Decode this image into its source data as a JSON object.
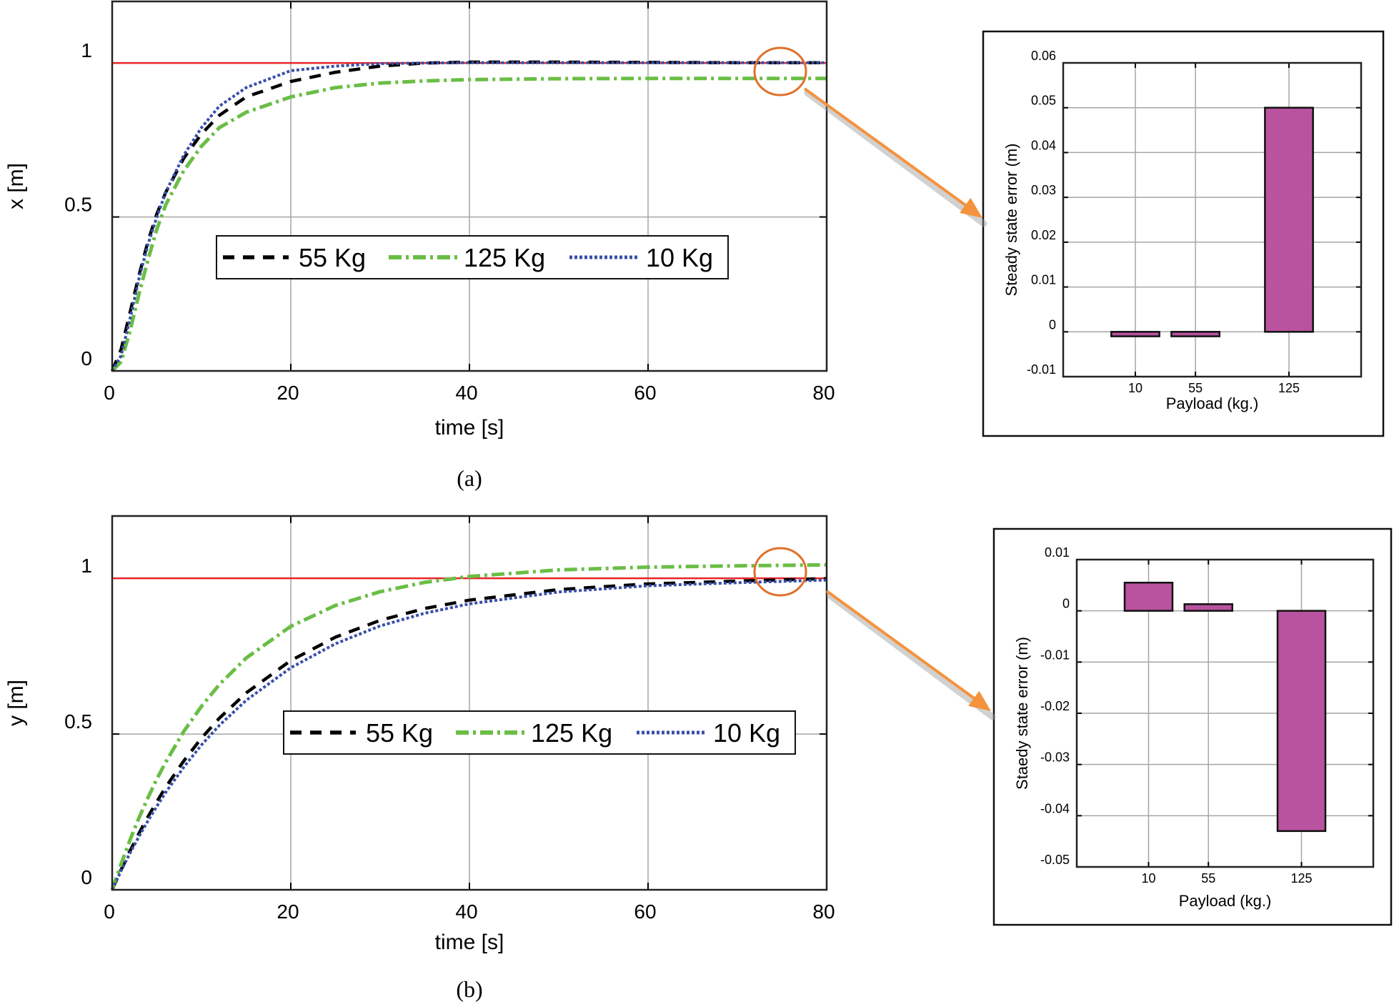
{
  "captions": {
    "a": "(a)",
    "b": "(b)"
  },
  "colors": {
    "reference": "#e8262a",
    "callout": "#f5923e",
    "bar": "#b9529f",
    "grid": "#a6a6a6"
  },
  "chart_data": [
    {
      "id": "x_response",
      "type": "line",
      "xlabel": "time [s]",
      "ylabel": "x [m]",
      "xlim": [
        0,
        80
      ],
      "ylim": [
        0,
        1.2
      ],
      "xticks": [
        0,
        20,
        40,
        60,
        80
      ],
      "yticks": [
        0,
        0.5,
        1
      ],
      "grid": true,
      "legend": "center",
      "reference": {
        "value": 1,
        "color": "#e8262a"
      },
      "series": [
        {
          "name": "55 Kg",
          "color": "#000000",
          "style": "dashed",
          "x": [
            0,
            1,
            2,
            3,
            4,
            5,
            6,
            8,
            10,
            12,
            15,
            20,
            25,
            30,
            35,
            40,
            50,
            60,
            70,
            80
          ],
          "y": [
            0,
            0.07,
            0.19,
            0.31,
            0.42,
            0.51,
            0.58,
            0.69,
            0.77,
            0.83,
            0.89,
            0.94,
            0.97,
            0.99,
            1.0,
            1.003,
            1.003,
            1.002,
            1.001,
            1.001
          ]
        },
        {
          "name": "125 Kg",
          "color": "#6abd45",
          "style": "dash-dot",
          "x": [
            0,
            1,
            2,
            3,
            4,
            5,
            6,
            8,
            10,
            12,
            15,
            20,
            25,
            30,
            35,
            40,
            50,
            60,
            70,
            80
          ],
          "y": [
            0,
            0.03,
            0.13,
            0.25,
            0.36,
            0.46,
            0.54,
            0.65,
            0.73,
            0.79,
            0.84,
            0.89,
            0.92,
            0.935,
            0.942,
            0.946,
            0.949,
            0.95,
            0.95,
            0.95
          ]
        },
        {
          "name": "10 Kg",
          "color": "#3a4fa8",
          "style": "dotted",
          "x": [
            0,
            1,
            2,
            3,
            4,
            5,
            6,
            8,
            10,
            12,
            15,
            20,
            25,
            30,
            35,
            40,
            50,
            60,
            70,
            80
          ],
          "y": [
            0,
            0.05,
            0.17,
            0.3,
            0.41,
            0.5,
            0.58,
            0.7,
            0.79,
            0.86,
            0.92,
            0.975,
            0.99,
            0.998,
            1.0,
            1.001,
            1.001,
            1.001,
            1.001,
            1.001
          ]
        }
      ]
    },
    {
      "id": "x_error",
      "type": "bar",
      "xlabel": "Payload (kg.)",
      "ylabel": "Steady state error (m)",
      "categories": [
        10,
        55,
        125
      ],
      "values": [
        -0.001,
        -0.001,
        0.05
      ],
      "xlim": [
        -44,
        179
      ],
      "ylim": [
        -0.01,
        0.06
      ],
      "yticks": [
        -0.01,
        0,
        0.01,
        0.02,
        0.03,
        0.04,
        0.05,
        0.06
      ],
      "grid": true,
      "color": "#b9529f"
    },
    {
      "id": "y_response",
      "type": "line",
      "xlabel": "time [s]",
      "ylabel": "y [m]",
      "xlim": [
        0,
        80
      ],
      "ylim": [
        0,
        1.2
      ],
      "xticks": [
        0,
        20,
        40,
        60,
        80
      ],
      "yticks": [
        0,
        0.5,
        1
      ],
      "grid": true,
      "legend": "center",
      "reference": {
        "value": 1,
        "color": "#e8262a"
      },
      "series": [
        {
          "name": "55 Kg",
          "color": "#000000",
          "style": "dashed",
          "x": [
            0,
            1,
            2,
            3,
            4,
            5,
            6,
            8,
            10,
            12,
            15,
            20,
            25,
            30,
            35,
            40,
            50,
            60,
            70,
            80
          ],
          "y": [
            0,
            0.064,
            0.125,
            0.181,
            0.234,
            0.283,
            0.33,
            0.413,
            0.487,
            0.551,
            0.632,
            0.736,
            0.811,
            0.865,
            0.903,
            0.93,
            0.964,
            0.982,
            0.991,
            0.999
          ]
        },
        {
          "name": "125 Kg",
          "color": "#6abd45",
          "style": "dash-dot",
          "x": [
            0,
            1,
            2,
            3,
            4,
            5,
            6,
            8,
            10,
            12,
            15,
            20,
            25,
            30,
            35,
            40,
            50,
            60,
            70,
            80
          ],
          "y": [
            0,
            0.083,
            0.16,
            0.231,
            0.295,
            0.356,
            0.41,
            0.508,
            0.589,
            0.659,
            0.744,
            0.846,
            0.913,
            0.957,
            0.987,
            1.006,
            1.027,
            1.036,
            1.04,
            1.043
          ]
        },
        {
          "name": "10 Kg",
          "color": "#3a4fa8",
          "style": "dotted",
          "x": [
            0,
            1,
            2,
            3,
            4,
            5,
            6,
            8,
            10,
            12,
            15,
            20,
            25,
            30,
            35,
            40,
            50,
            60,
            70,
            80
          ],
          "y": [
            0,
            0.061,
            0.118,
            0.171,
            0.221,
            0.268,
            0.313,
            0.393,
            0.465,
            0.528,
            0.608,
            0.713,
            0.79,
            0.847,
            0.888,
            0.918,
            0.956,
            0.976,
            0.986,
            0.9945
          ]
        }
      ]
    },
    {
      "id": "y_error",
      "type": "bar",
      "xlabel": "Payload (kg.)",
      "ylabel": "Staedy state error (m)",
      "categories": [
        10,
        55,
        125
      ],
      "values": [
        0.0055,
        0.0013,
        -0.043
      ],
      "xlim": [
        -44,
        179
      ],
      "ylim": [
        -0.05,
        0.01
      ],
      "yticks": [
        -0.05,
        -0.04,
        -0.03,
        -0.02,
        -0.01,
        0,
        0.01
      ],
      "grid": true,
      "color": "#b9529f"
    }
  ]
}
